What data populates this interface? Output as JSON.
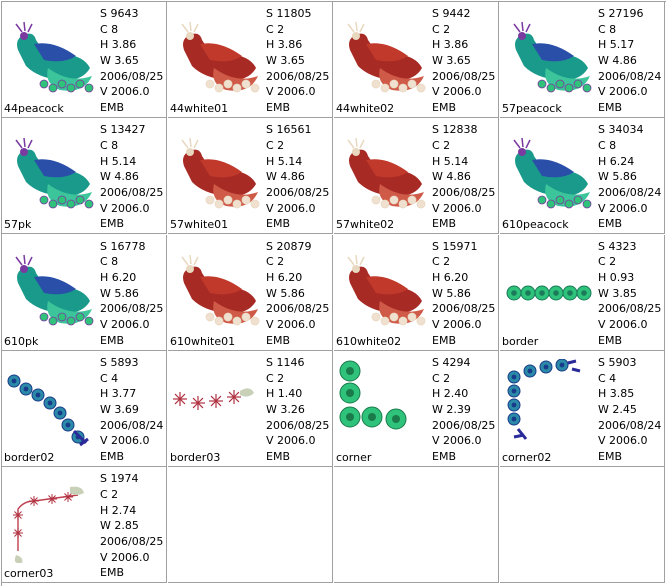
{
  "items": [
    {
      "name": "44peacock",
      "s": "S  9643",
      "c": "C  8",
      "h": "H  3.86",
      "w": "W  3.65",
      "date": "2006/08/25",
      "v": "V  2006.0",
      "fmt": "EMB",
      "color": "peacock"
    },
    {
      "name": "44white01",
      "s": "S  11805",
      "c": "C  2",
      "h": "H  3.86",
      "w": "W  3.65",
      "date": "2006/08/25",
      "v": "V  2006.0",
      "fmt": "EMB",
      "color": "red"
    },
    {
      "name": "44white02",
      "s": "S  9442",
      "c": "C  2",
      "h": "H  3.86",
      "w": "W  3.65",
      "date": "2006/08/25",
      "v": "V  2006.0",
      "fmt": "EMB",
      "color": "red"
    },
    {
      "name": "57peacock",
      "s": "S  27196",
      "c": "C  8",
      "h": "H  5.17",
      "w": "W  4.86",
      "date": "2006/08/24",
      "v": "V  2006.0",
      "fmt": "EMB",
      "color": "peacock"
    },
    {
      "name": "57pk",
      "s": "S  13427",
      "c": "C  8",
      "h": "H  5.14",
      "w": "W  4.86",
      "date": "2006/08/25",
      "v": "V  2006.0",
      "fmt": "EMB",
      "color": "peacock"
    },
    {
      "name": "57white01",
      "s": "S  16561",
      "c": "C  2",
      "h": "H  5.14",
      "w": "W  4.86",
      "date": "2006/08/25",
      "v": "V  2006.0",
      "fmt": "EMB",
      "color": "red"
    },
    {
      "name": "57white02",
      "s": "S  12838",
      "c": "C  2",
      "h": "H  5.14",
      "w": "W  4.86",
      "date": "2006/08/25",
      "v": "V  2006.0",
      "fmt": "EMB",
      "color": "red"
    },
    {
      "name": "610peacock",
      "s": "S  34034",
      "c": "C  8",
      "h": "H  6.24",
      "w": "W  5.86",
      "date": "2006/08/24",
      "v": "V  2006.0",
      "fmt": "EMB",
      "color": "peacock"
    },
    {
      "name": "610pk",
      "s": "S  16778",
      "c": "C  8",
      "h": "H  6.20",
      "w": "W  5.86",
      "date": "2006/08/25",
      "v": "V  2006.0",
      "fmt": "EMB",
      "color": "peacock"
    },
    {
      "name": "610white01",
      "s": "S  20879",
      "c": "C  2",
      "h": "H  6.20",
      "w": "W  5.86",
      "date": "2006/08/25",
      "v": "V  2006.0",
      "fmt": "EMB",
      "color": "red"
    },
    {
      "name": "610white02",
      "s": "S  15971",
      "c": "C  2",
      "h": "H  6.20",
      "w": "W  5.86",
      "date": "2006/08/25",
      "v": "V  2006.0",
      "fmt": "EMB",
      "color": "red"
    },
    {
      "name": "border",
      "s": "S  4323",
      "c": "C  2",
      "h": "H  0.93",
      "w": "W  3.85",
      "date": "2006/08/25",
      "v": "V  2006.0",
      "fmt": "EMB",
      "color": "border"
    },
    {
      "name": "border02",
      "s": "S  5893",
      "c": "C  4",
      "h": "H  3.77",
      "w": "W  3.69",
      "date": "2006/08/24",
      "v": "V  2006.0",
      "fmt": "EMB",
      "color": "border02"
    },
    {
      "name": "border03",
      "s": "S  1146",
      "c": "C  2",
      "h": "H  1.40",
      "w": "W  3.26",
      "date": "2006/08/25",
      "v": "V  2006.0",
      "fmt": "EMB",
      "color": "border03"
    },
    {
      "name": "corner",
      "s": "S  4294",
      "c": "C  2",
      "h": "H  2.40",
      "w": "W  2.39",
      "date": "2006/08/25",
      "v": "V  2006.0",
      "fmt": "EMB",
      "color": "corner"
    },
    {
      "name": "corner02",
      "s": "S  5903",
      "c": "C  4",
      "h": "H  3.85",
      "w": "W  2.45",
      "date": "2006/08/24",
      "v": "V  2006.0",
      "fmt": "EMB",
      "color": "corner02"
    },
    {
      "name": "corner03",
      "s": "S  1974",
      "c": "C  2",
      "h": "H  2.74",
      "w": "W  2.85",
      "date": "2006/08/25",
      "v": "V  2006.0",
      "fmt": "EMB",
      "color": "corner03"
    }
  ]
}
